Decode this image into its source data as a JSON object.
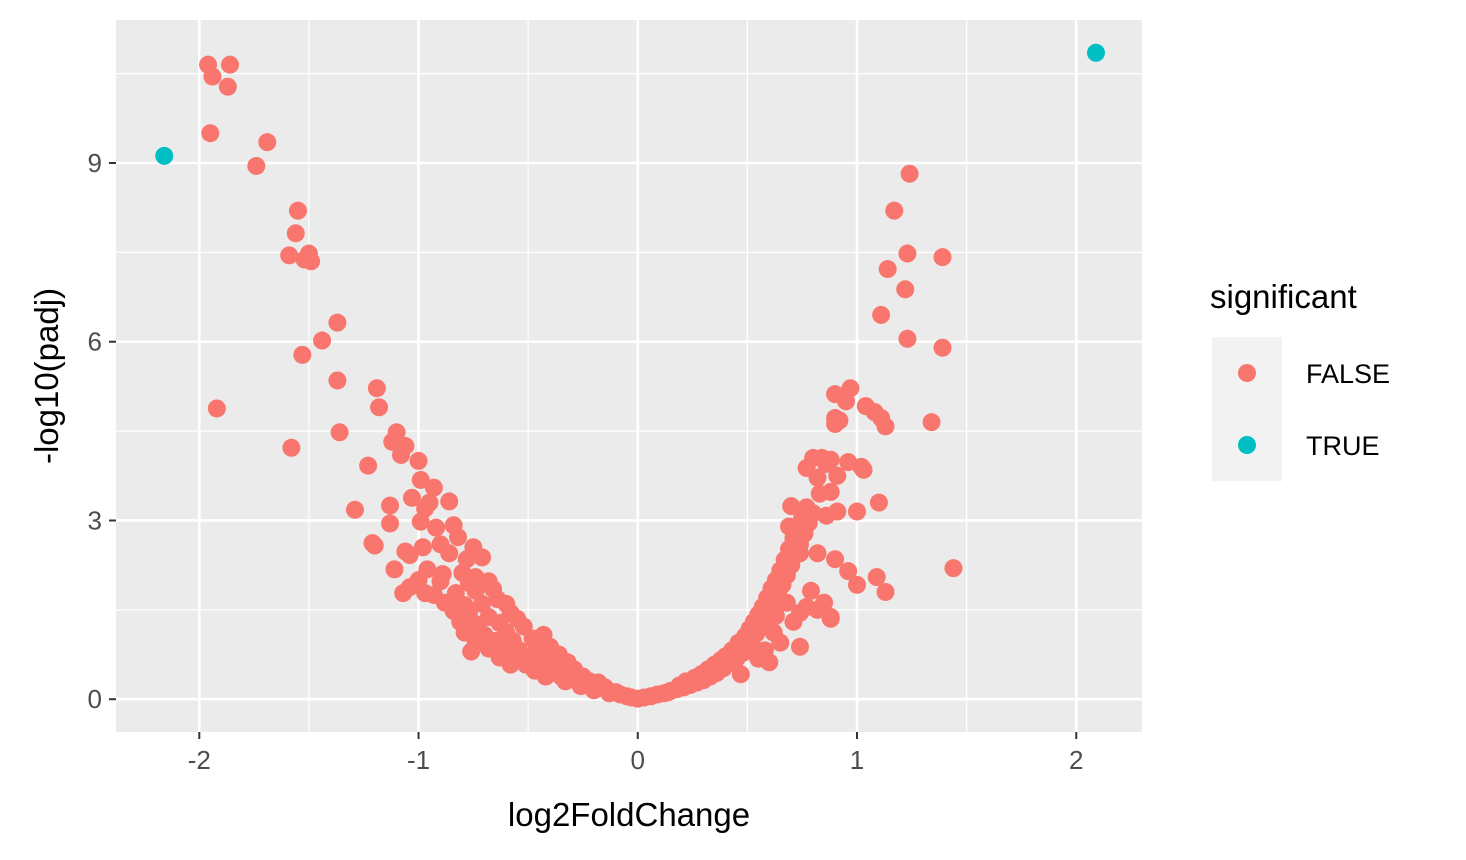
{
  "chart_data": {
    "type": "scatter",
    "title": "",
    "xlabel": "log2FoldChange",
    "ylabel": "-log10(padj)",
    "xlim": [
      -2.38,
      2.3
    ],
    "ylim": [
      -0.55,
      11.4
    ],
    "x_ticks": [
      -2,
      -1,
      0,
      1,
      2
    ],
    "x_tick_labels": [
      "-2",
      "-1",
      "0",
      "1",
      "2"
    ],
    "y_ticks": [
      0,
      3,
      6,
      9
    ],
    "y_tick_labels": [
      "0",
      "3",
      "6",
      "9"
    ],
    "grid": true,
    "legend": {
      "title": "significant",
      "placement": "right"
    },
    "series": [
      {
        "name": "FALSE",
        "color": "#F8766D",
        "points": [
          [
            -1.96,
            10.65
          ],
          [
            -1.86,
            10.65
          ],
          [
            -1.94,
            10.45
          ],
          [
            -1.87,
            10.28
          ],
          [
            -1.95,
            9.5
          ],
          [
            -1.69,
            9.35
          ],
          [
            -1.74,
            8.95
          ],
          [
            -1.55,
            8.2
          ],
          [
            -1.56,
            7.82
          ],
          [
            -1.59,
            7.45
          ],
          [
            -1.5,
            7.48
          ],
          [
            -1.52,
            7.38
          ],
          [
            -1.49,
            7.35
          ],
          [
            -1.37,
            6.32
          ],
          [
            -1.44,
            6.02
          ],
          [
            -1.53,
            5.78
          ],
          [
            -1.37,
            5.35
          ],
          [
            -1.92,
            4.88
          ],
          [
            -1.58,
            4.22
          ],
          [
            -1.36,
            4.48
          ],
          [
            -1.19,
            5.22
          ],
          [
            -1.18,
            4.9
          ],
          [
            -1.1,
            4.48
          ],
          [
            -1.12,
            4.32
          ],
          [
            -1.06,
            4.25
          ],
          [
            -1.08,
            4.1
          ],
          [
            -1.0,
            4.0
          ],
          [
            -1.23,
            3.92
          ],
          [
            -0.99,
            3.68
          ],
          [
            -0.93,
            3.55
          ],
          [
            -1.03,
            3.38
          ],
          [
            -1.13,
            3.25
          ],
          [
            -1.29,
            3.18
          ],
          [
            -0.95,
            3.3
          ],
          [
            -0.86,
            3.32
          ],
          [
            -0.97,
            3.2
          ],
          [
            -1.13,
            2.95
          ],
          [
            -0.99,
            2.98
          ],
          [
            -0.92,
            2.88
          ],
          [
            -0.84,
            2.92
          ],
          [
            -1.21,
            2.62
          ],
          [
            -1.2,
            2.58
          ],
          [
            -1.06,
            2.48
          ],
          [
            -0.98,
            2.55
          ],
          [
            -0.9,
            2.6
          ],
          [
            -0.82,
            2.72
          ],
          [
            -0.75,
            2.55
          ],
          [
            -1.04,
            2.42
          ],
          [
            -0.86,
            2.45
          ],
          [
            -0.78,
            2.35
          ],
          [
            -0.71,
            2.38
          ],
          [
            -1.11,
            2.18
          ],
          [
            -0.96,
            2.18
          ],
          [
            -0.89,
            2.1
          ],
          [
            -0.8,
            2.12
          ],
          [
            -0.74,
            2.05
          ],
          [
            -1.0,
            2.0
          ],
          [
            -0.9,
            1.98
          ],
          [
            -0.77,
            1.95
          ],
          [
            -0.68,
            1.98
          ],
          [
            -1.04,
            1.88
          ],
          [
            -1.07,
            1.78
          ],
          [
            -0.97,
            1.78
          ],
          [
            -0.93,
            1.75
          ],
          [
            -0.83,
            1.78
          ],
          [
            -0.74,
            1.82
          ],
          [
            -0.66,
            1.85
          ],
          [
            -0.88,
            1.62
          ],
          [
            -0.79,
            1.58
          ],
          [
            -0.71,
            1.6
          ],
          [
            -0.64,
            1.68
          ],
          [
            -0.6,
            1.6
          ],
          [
            -0.84,
            1.48
          ],
          [
            -0.77,
            1.42
          ],
          [
            -0.68,
            1.38
          ],
          [
            -0.58,
            1.45
          ],
          [
            -0.81,
            1.3
          ],
          [
            -0.73,
            1.25
          ],
          [
            -0.63,
            1.28
          ],
          [
            -0.55,
            1.35
          ],
          [
            -0.79,
            1.12
          ],
          [
            -0.7,
            1.08
          ],
          [
            -0.6,
            1.12
          ],
          [
            -0.52,
            1.22
          ],
          [
            -0.74,
            0.98
          ],
          [
            -0.65,
            0.98
          ],
          [
            -0.57,
            0.98
          ],
          [
            -0.48,
            1.02
          ],
          [
            -0.43,
            1.08
          ],
          [
            -0.76,
            0.8
          ],
          [
            -0.68,
            0.85
          ],
          [
            -0.62,
            0.78
          ],
          [
            -0.54,
            0.82
          ],
          [
            -0.46,
            0.85
          ],
          [
            -0.4,
            0.88
          ],
          [
            -0.63,
            0.7
          ],
          [
            -0.56,
            0.68
          ],
          [
            -0.49,
            0.72
          ],
          [
            -0.42,
            0.7
          ],
          [
            -0.36,
            0.75
          ],
          [
            -0.58,
            0.58
          ],
          [
            -0.51,
            0.58
          ],
          [
            -0.44,
            0.58
          ],
          [
            -0.37,
            0.6
          ],
          [
            -0.32,
            0.62
          ],
          [
            -0.47,
            0.48
          ],
          [
            -0.4,
            0.48
          ],
          [
            -0.34,
            0.48
          ],
          [
            -0.29,
            0.5
          ],
          [
            -0.42,
            0.38
          ],
          [
            -0.35,
            0.38
          ],
          [
            -0.29,
            0.4
          ],
          [
            -0.25,
            0.38
          ],
          [
            -0.33,
            0.3
          ],
          [
            -0.27,
            0.3
          ],
          [
            -0.22,
            0.3
          ],
          [
            -0.18,
            0.28
          ],
          [
            -0.26,
            0.22
          ],
          [
            -0.2,
            0.22
          ],
          [
            -0.15,
            0.2
          ],
          [
            -0.2,
            0.15
          ],
          [
            -0.14,
            0.15
          ],
          [
            -0.1,
            0.12
          ],
          [
            -0.13,
            0.1
          ],
          [
            -0.08,
            0.08
          ],
          [
            -0.05,
            0.05
          ],
          [
            -0.03,
            0.03
          ],
          [
            0.0,
            0.01
          ],
          [
            0.03,
            0.03
          ],
          [
            0.06,
            0.05
          ],
          [
            0.09,
            0.08
          ],
          [
            0.12,
            0.1
          ],
          [
            0.15,
            0.14
          ],
          [
            0.18,
            0.17
          ],
          [
            0.21,
            0.2
          ],
          [
            0.14,
            0.12
          ],
          [
            0.24,
            0.24
          ],
          [
            0.19,
            0.23
          ],
          [
            0.27,
            0.28
          ],
          [
            0.22,
            0.3
          ],
          [
            0.3,
            0.32
          ],
          [
            0.26,
            0.36
          ],
          [
            0.33,
            0.38
          ],
          [
            0.29,
            0.42
          ],
          [
            0.36,
            0.44
          ],
          [
            0.32,
            0.5
          ],
          [
            0.39,
            0.52
          ],
          [
            0.35,
            0.58
          ],
          [
            0.42,
            0.6
          ],
          [
            0.38,
            0.66
          ],
          [
            0.45,
            0.68
          ],
          [
            0.47,
            0.42
          ],
          [
            0.4,
            0.72
          ],
          [
            0.48,
            0.78
          ],
          [
            0.43,
            0.82
          ],
          [
            0.5,
            0.88
          ],
          [
            0.46,
            0.95
          ],
          [
            0.52,
            1.0
          ],
          [
            0.49,
            1.06
          ],
          [
            0.54,
            1.1
          ],
          [
            0.51,
            1.18
          ],
          [
            0.56,
            1.22
          ],
          [
            0.53,
            1.3
          ],
          [
            0.58,
            1.35
          ],
          [
            0.55,
            1.42
          ],
          [
            0.6,
            1.48
          ],
          [
            0.57,
            1.55
          ],
          [
            0.62,
            1.62
          ],
          [
            0.59,
            1.7
          ],
          [
            0.64,
            1.78
          ],
          [
            0.61,
            1.86
          ],
          [
            0.66,
            1.92
          ],
          [
            0.63,
            2.0
          ],
          [
            0.68,
            2.08
          ],
          [
            0.65,
            2.16
          ],
          [
            0.7,
            2.25
          ],
          [
            0.67,
            2.34
          ],
          [
            0.72,
            2.42
          ],
          [
            0.69,
            2.52
          ],
          [
            0.74,
            2.6
          ],
          [
            0.71,
            2.7
          ],
          [
            0.76,
            2.78
          ],
          [
            0.73,
            2.88
          ],
          [
            0.78,
            2.96
          ],
          [
            0.75,
            3.05
          ],
          [
            0.8,
            3.12
          ],
          [
            0.77,
            3.22
          ],
          [
            0.69,
            2.9
          ],
          [
            0.7,
            3.24
          ],
          [
            0.55,
            0.68
          ],
          [
            0.58,
            0.82
          ],
          [
            0.62,
            1.12
          ],
          [
            0.6,
            0.62
          ],
          [
            0.65,
            0.95
          ],
          [
            0.71,
            1.3
          ],
          [
            0.68,
            1.62
          ],
          [
            0.74,
            1.45
          ],
          [
            0.77,
            1.55
          ],
          [
            0.79,
            1.82
          ],
          [
            0.82,
            1.5
          ],
          [
            0.85,
            1.62
          ],
          [
            0.88,
            1.38
          ],
          [
            0.74,
            0.88
          ],
          [
            0.63,
            1.4
          ],
          [
            0.66,
            2.05
          ],
          [
            0.74,
            2.45
          ],
          [
            0.76,
            2.82
          ],
          [
            0.82,
            2.45
          ],
          [
            0.9,
            2.35
          ],
          [
            0.86,
            3.08
          ],
          [
            0.88,
            3.48
          ],
          [
            0.83,
            3.45
          ],
          [
            0.82,
            3.72
          ],
          [
            0.86,
            3.95
          ],
          [
            0.88,
            4.02
          ],
          [
            0.84,
            4.05
          ],
          [
            0.8,
            4.05
          ],
          [
            0.77,
            3.88
          ],
          [
            0.91,
            3.75
          ],
          [
            0.96,
            3.98
          ],
          [
            1.02,
            3.9
          ],
          [
            1.03,
            3.85
          ],
          [
            0.9,
            4.62
          ],
          [
            0.9,
            4.72
          ],
          [
            0.92,
            4.68
          ],
          [
            0.9,
            5.12
          ],
          [
            0.95,
            5.0
          ],
          [
            0.97,
            5.22
          ],
          [
            1.04,
            4.92
          ],
          [
            1.08,
            4.82
          ],
          [
            1.11,
            4.72
          ],
          [
            1.13,
            4.58
          ],
          [
            1.0,
            3.15
          ],
          [
            1.1,
            3.3
          ],
          [
            0.91,
            3.15
          ],
          [
            0.96,
            2.15
          ],
          [
            1.0,
            1.92
          ],
          [
            1.09,
            2.05
          ],
          [
            1.13,
            1.8
          ],
          [
            0.88,
            1.35
          ],
          [
            1.44,
            2.2
          ],
          [
            1.34,
            4.65
          ],
          [
            1.39,
            5.9
          ],
          [
            1.11,
            6.45
          ],
          [
            1.14,
            7.22
          ],
          [
            1.22,
            6.88
          ],
          [
            1.23,
            6.05
          ],
          [
            1.23,
            7.48
          ],
          [
            1.39,
            7.42
          ],
          [
            1.17,
            8.2
          ],
          [
            1.24,
            8.82
          ]
        ]
      },
      {
        "name": "TRUE",
        "color": "#00BFC4",
        "points": [
          [
            -2.16,
            9.12
          ],
          [
            2.09,
            10.85
          ]
        ]
      }
    ]
  }
}
